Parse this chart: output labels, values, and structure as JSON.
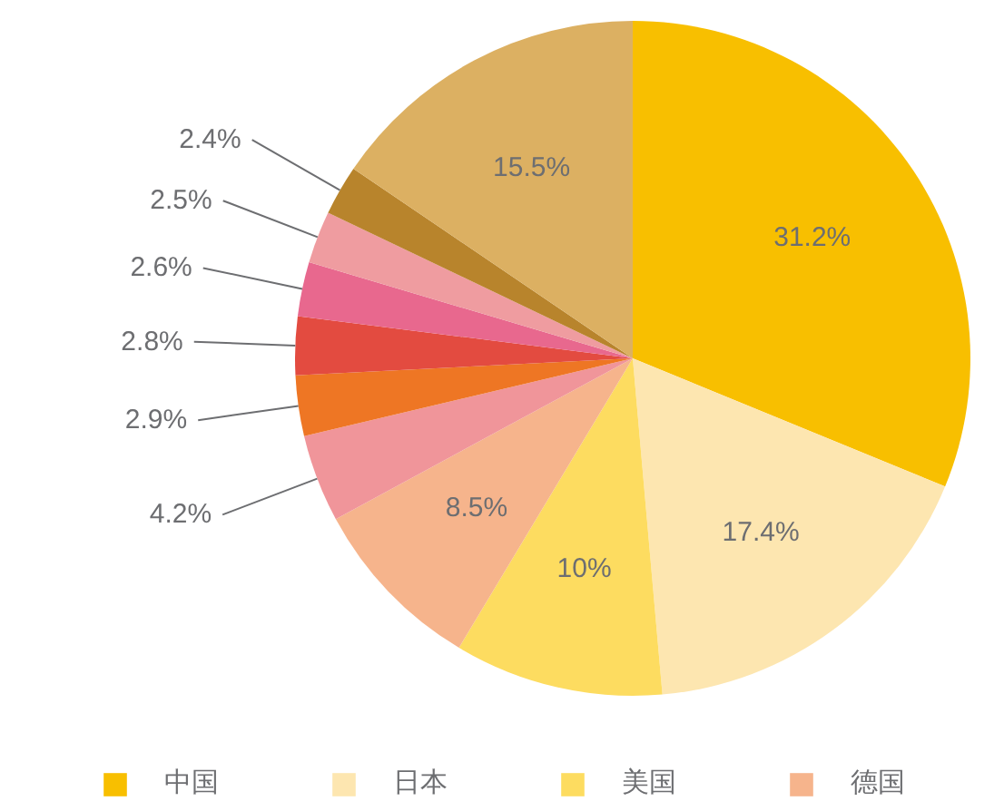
{
  "chart_data": {
    "type": "pie",
    "categories": [
      "中国",
      "日本",
      "美国",
      "德国",
      null,
      null,
      null,
      null,
      null,
      null,
      null
    ],
    "values": [
      31.2,
      17.4,
      10,
      8.5,
      4.2,
      2.9,
      2.8,
      2.6,
      2.5,
      2.4,
      15.5
    ],
    "colors": [
      "#f8bf00",
      "#fde6b0",
      "#fddc60",
      "#f6b48c",
      "#f0959a",
      "#ee7624",
      "#e34b40",
      "#e8688e",
      "#ef9ca0",
      "#b8842c",
      "#dcb062"
    ],
    "value_labels": [
      "31.2%",
      "17.4%",
      "10%",
      "8.5%",
      "4.2%",
      "2.9%",
      "2.8%",
      "2.6%",
      "2.5%",
      "2.4%",
      "15.5%"
    ],
    "legend": "bottom"
  }
}
